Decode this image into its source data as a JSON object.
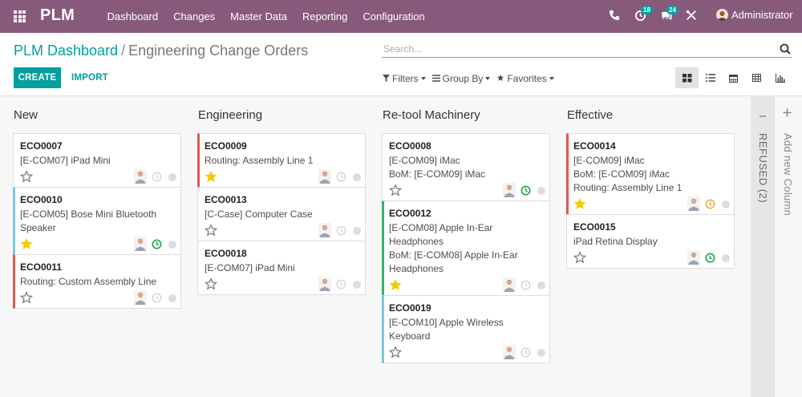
{
  "navbar": {
    "brand": "PLM",
    "menu": [
      "Dashboard",
      "Changes",
      "Master Data",
      "Reporting",
      "Configuration"
    ],
    "activity_badge": "18",
    "messages_badge": "24",
    "user": "Administrator",
    "bg_color": "#875a7b"
  },
  "control": {
    "breadcrumb_root": "PLM Dashboard",
    "breadcrumb_sep": "/",
    "breadcrumb_current": "Engineering Change Orders",
    "search_placeholder": "Search...",
    "create_label": "CREATE",
    "import_label": "IMPORT",
    "filters_label": "Filters",
    "groupby_label": "Group By",
    "favorites_label": "Favorites",
    "views": [
      "kanban",
      "list",
      "calendar",
      "pivot",
      "graph"
    ],
    "accent": "#00a09d"
  },
  "columns": [
    {
      "title": "New",
      "cards": [
        {
          "ref": "ECO0007",
          "lines": [
            "[E-COM07] iPad Mini"
          ],
          "starred": false,
          "clock": "none",
          "color": "none"
        },
        {
          "ref": "ECO0010",
          "lines": [
            "[E-COM05] Bose Mini Bluetooth",
            "Speaker"
          ],
          "starred": true,
          "clock": "green",
          "color": "blue"
        },
        {
          "ref": "ECO0011",
          "lines": [
            "Routing: Custom Assembly Line"
          ],
          "starred": false,
          "clock": "none",
          "color": "red"
        }
      ]
    },
    {
      "title": "Engineering",
      "cards": [
        {
          "ref": "ECO0009",
          "lines": [
            "Routing: Assembly Line 1"
          ],
          "starred": true,
          "clock": "none",
          "color": "red"
        },
        {
          "ref": "ECO0013",
          "lines": [
            "[C-Case] Computer Case"
          ],
          "starred": false,
          "clock": "none",
          "color": "none"
        },
        {
          "ref": "ECO0018",
          "lines": [
            "[E-COM07] iPad Mini"
          ],
          "starred": false,
          "clock": "none",
          "color": "none"
        }
      ]
    },
    {
      "title": "Re-tool Machinery",
      "cards": [
        {
          "ref": "ECO0008",
          "lines": [
            "[E-COM09] iMac",
            "BoM: [E-COM09] iMac"
          ],
          "starred": false,
          "clock": "green",
          "color": "none"
        },
        {
          "ref": "ECO0012",
          "lines": [
            "[E-COM08] Apple In-Ear",
            "Headphones",
            "BoM: [E-COM08] Apple In-Ear",
            "Headphones"
          ],
          "starred": true,
          "clock": "none",
          "color": "green"
        },
        {
          "ref": "ECO0019",
          "lines": [
            "[E-COM10] Apple Wireless",
            "Keyboard"
          ],
          "starred": false,
          "clock": "none",
          "color": "blue"
        }
      ]
    },
    {
      "title": "Effective",
      "cards": [
        {
          "ref": "ECO0014",
          "lines": [
            "[E-COM09] iMac",
            "BoM: [E-COM09] iMac",
            "Routing: Assembly Line 1"
          ],
          "starred": true,
          "clock": "orange",
          "color": "red"
        },
        {
          "ref": "ECO0015",
          "lines": [
            "iPad Retina Display"
          ],
          "starred": false,
          "clock": "green",
          "color": "none"
        }
      ]
    }
  ],
  "folded_column": "REFUSED (2)",
  "add_column": "Add new Column"
}
